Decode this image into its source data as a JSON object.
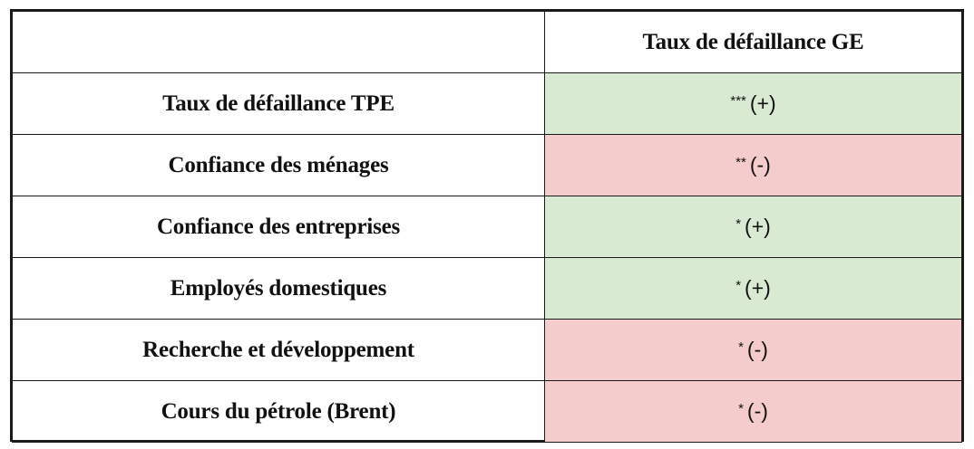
{
  "table": {
    "header": {
      "corner": "",
      "column": "Taux de défaillance GE"
    },
    "colors": {
      "positive": "#d9ead3",
      "negative": "#f4cccc",
      "border": "#1a1a1a"
    },
    "rows": [
      {
        "label": "Taux de défaillance TPE",
        "stars": "***",
        "sign": "(+)",
        "tone": "positive"
      },
      {
        "label": "Confiance des ménages",
        "stars": "**",
        "sign": "(-)",
        "tone": "negative"
      },
      {
        "label": "Confiance des entreprises",
        "stars": "*",
        "sign": "(+)",
        "tone": "positive"
      },
      {
        "label": "Employés domestiques",
        "stars": "*",
        "sign": "(+)",
        "tone": "positive"
      },
      {
        "label": "Recherche et développement",
        "stars": "*",
        "sign": "(-)",
        "tone": "negative"
      },
      {
        "label": "Cours du pétrole (Brent)",
        "stars": "*",
        "sign": "(-)",
        "tone": "negative"
      }
    ]
  }
}
